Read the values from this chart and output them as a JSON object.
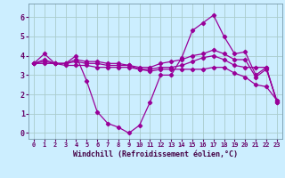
{
  "title": "",
  "xlabel": "Windchill (Refroidissement éolien,°C)",
  "ylabel": "",
  "xlim": [
    -0.5,
    23.5
  ],
  "ylim": [
    -0.3,
    6.7
  ],
  "xticks": [
    0,
    1,
    2,
    3,
    4,
    5,
    6,
    7,
    8,
    9,
    10,
    11,
    12,
    13,
    14,
    15,
    16,
    17,
    18,
    19,
    20,
    21,
    22,
    23
  ],
  "yticks": [
    0,
    1,
    2,
    3,
    4,
    5,
    6
  ],
  "bg_color": "#cceeff",
  "line_color": "#990099",
  "grid_color": "#aacccc",
  "series": [
    [
      3.6,
      4.1,
      3.6,
      3.6,
      4.0,
      2.7,
      1.1,
      0.5,
      0.3,
      0.0,
      0.4,
      1.6,
      3.0,
      3.0,
      3.9,
      5.3,
      5.7,
      6.1,
      5.0,
      4.1,
      4.2,
      3.0,
      3.4,
      1.6
    ],
    [
      3.6,
      3.6,
      3.6,
      3.6,
      3.7,
      3.6,
      3.6,
      3.5,
      3.5,
      3.5,
      3.3,
      3.3,
      3.4,
      3.4,
      3.5,
      3.7,
      3.9,
      4.0,
      3.8,
      3.5,
      3.4,
      3.4,
      3.4,
      1.6
    ],
    [
      3.6,
      3.7,
      3.6,
      3.6,
      3.8,
      3.7,
      3.7,
      3.6,
      3.6,
      3.5,
      3.4,
      3.4,
      3.6,
      3.7,
      3.8,
      4.0,
      4.1,
      4.3,
      4.1,
      3.8,
      3.8,
      2.9,
      3.3,
      1.7
    ],
    [
      3.6,
      3.8,
      3.6,
      3.5,
      3.5,
      3.5,
      3.4,
      3.4,
      3.4,
      3.4,
      3.3,
      3.2,
      3.3,
      3.3,
      3.3,
      3.3,
      3.3,
      3.4,
      3.4,
      3.1,
      2.9,
      2.5,
      2.4,
      1.7
    ]
  ]
}
